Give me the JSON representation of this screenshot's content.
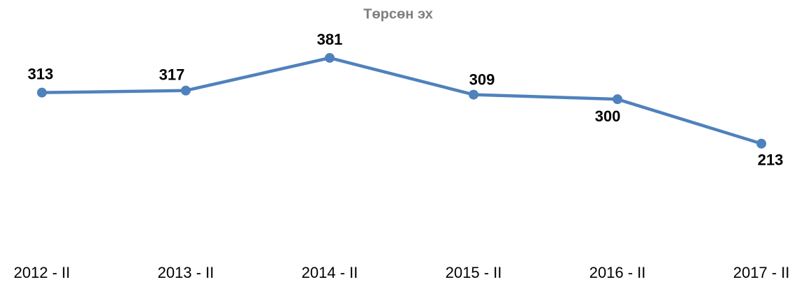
{
  "chart_data": {
    "type": "line",
    "title": "Төрсөн эх",
    "categories": [
      "2012 - II",
      "2013 - II",
      "2014 - II",
      "2015 - II",
      "2016 - II",
      "2017 - II"
    ],
    "series": [
      {
        "name": "Төрсөн эх",
        "color": "#4f81bd",
        "values": [
          313,
          317,
          381,
          309,
          300,
          213
        ]
      }
    ],
    "ylim": [
      0,
      450
    ]
  }
}
